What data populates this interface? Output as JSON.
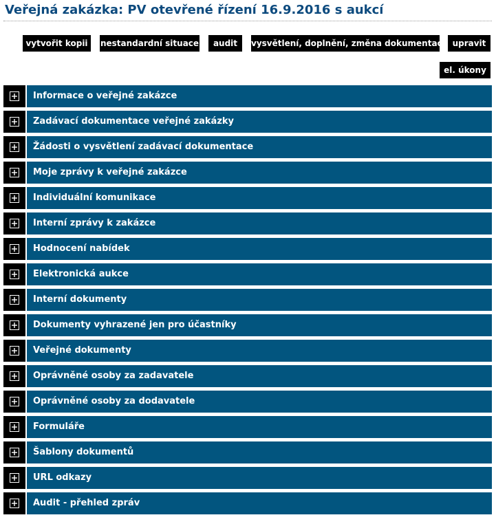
{
  "page": {
    "title": "Veřejná zakázka: PV otevřené řízení 16.9.2016 s aukcí"
  },
  "toolbar": {
    "buttons": [
      {
        "label": "vytvořit kopii"
      },
      {
        "label": "nestandardní situace"
      },
      {
        "label": "audit"
      },
      {
        "label": "vysvětlení, doplnění, změna dokumentace"
      },
      {
        "label": "upravit"
      },
      {
        "label": "el. úkony"
      }
    ]
  },
  "sections": [
    {
      "label": "Informace o veřejné zakázce",
      "icon": "expand-plus-icon"
    },
    {
      "label": "Zadávací dokumentace veřejné zakázky",
      "icon": "expand-plus-icon"
    },
    {
      "label": "Žádosti o vysvětlení zadávací dokumentace",
      "icon": "expand-plus-icon"
    },
    {
      "label": "Moje zprávy k veřejné zakázce",
      "icon": "expand-plus-icon"
    },
    {
      "label": "Individuální komunikace",
      "icon": "expand-plus-icon"
    },
    {
      "label": "Interní zprávy k zakázce",
      "icon": "expand-plus-icon"
    },
    {
      "label": "Hodnocení nabídek",
      "icon": "expand-plus-icon"
    },
    {
      "label": "Elektronická aukce",
      "icon": "expand-plus-icon"
    },
    {
      "label": "Interní dokumenty",
      "icon": "expand-plus-icon"
    },
    {
      "label": "Dokumenty vyhrazené jen pro účastníky",
      "icon": "expand-plus-icon"
    },
    {
      "label": "Veřejné dokumenty",
      "icon": "expand-plus-icon"
    },
    {
      "label": "Oprávněné osoby za zadavatele",
      "icon": "expand-plus-icon"
    },
    {
      "label": "Oprávněné osoby za dodavatele",
      "icon": "expand-plus-icon"
    },
    {
      "label": "Formuláře",
      "icon": "expand-plus-icon"
    },
    {
      "label": "Šablony dokumentů",
      "icon": "expand-plus-icon"
    },
    {
      "label": "URL odkazy",
      "icon": "expand-plus-icon"
    },
    {
      "label": "Audit - přehled zpráv",
      "icon": "expand-plus-icon"
    }
  ],
  "colors": {
    "title": "#0c4a7e",
    "section_bar": "#02557f",
    "button_bg": "#000000",
    "button_text": "#ffffff"
  }
}
